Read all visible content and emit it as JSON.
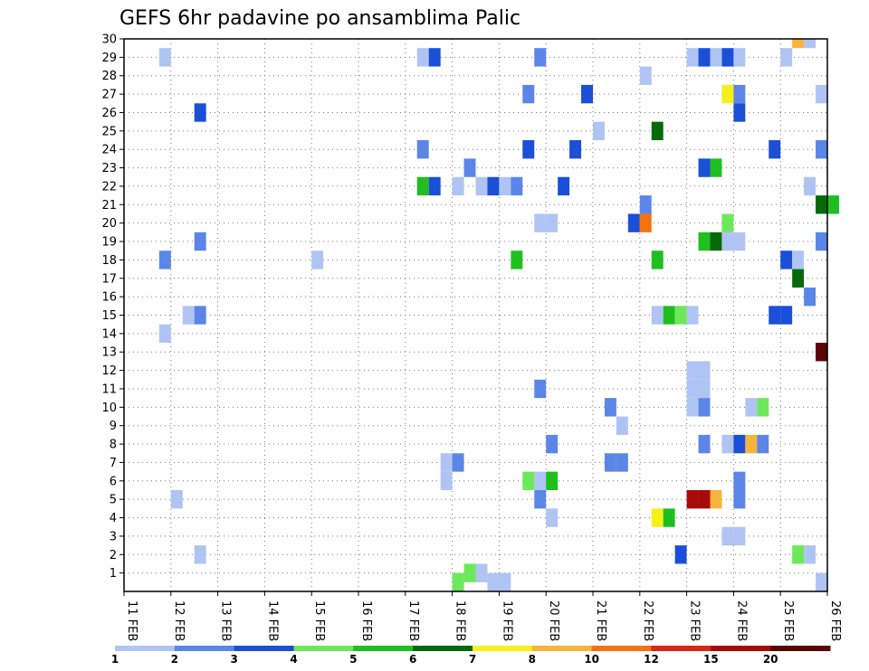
{
  "chart_data": {
    "type": "heatmap",
    "title": "GEFS 6hr padavine po ansamblima Palic",
    "x_tick_labels": [
      "11 FEB",
      "12 FEB",
      "13 FEB",
      "14 FEB",
      "15 FEB",
      "16 FEB",
      "17 FEB",
      "18 FEB",
      "19 FEB",
      "20 FEB",
      "21 FEB",
      "22 FEB",
      "23 FEB",
      "24 FEB",
      "25 FEB",
      "26 FEB"
    ],
    "y_tick_labels": [
      "1",
      "2",
      "3",
      "4",
      "5",
      "6",
      "7",
      "8",
      "9",
      "10",
      "11",
      "12",
      "13",
      "14",
      "15",
      "16",
      "17",
      "18",
      "19",
      "20",
      "21",
      "22",
      "23",
      "24",
      "25",
      "26",
      "27",
      "28",
      "29",
      "30"
    ],
    "x_range_days": [
      0,
      15
    ],
    "y_range": [
      0,
      30
    ],
    "step_hours": 6,
    "grid": true,
    "legend": {
      "position": "bottom",
      "labels": [
        "1",
        "2",
        "3",
        "4",
        "5",
        "6",
        "7",
        "8",
        "10",
        "12",
        "15",
        "20"
      ],
      "colors": [
        "#b0c4f4",
        "#5b86e8",
        "#1b4fd8",
        "#6de85a",
        "#1fbf1f",
        "#066a0d",
        "#f7f018",
        "#f8b43a",
        "#f47210",
        "#d92816",
        "#a80a0a",
        "#5a0606"
      ]
    },
    "cells": [
      {
        "x": 0.75,
        "y": 29,
        "c": 0
      },
      {
        "x": 1.5,
        "y": 26,
        "c": 2
      },
      {
        "x": 1.5,
        "y": 19,
        "c": 1
      },
      {
        "x": 0.75,
        "y": 18,
        "c": 1
      },
      {
        "x": 1.25,
        "y": 15,
        "c": 0
      },
      {
        "x": 1.5,
        "y": 15,
        "c": 1
      },
      {
        "x": 0.75,
        "y": 14,
        "c": 0
      },
      {
        "x": 1.0,
        "y": 5,
        "c": 0
      },
      {
        "x": 1.5,
        "y": 2,
        "c": 0
      },
      {
        "x": 4.0,
        "y": 18,
        "c": 0
      },
      {
        "x": 6.25,
        "y": 29,
        "c": 0
      },
      {
        "x": 6.5,
        "y": 29,
        "c": 2
      },
      {
        "x": 6.25,
        "y": 24,
        "c": 1
      },
      {
        "x": 6.25,
        "y": 22,
        "c": 4
      },
      {
        "x": 6.5,
        "y": 22,
        "c": 2
      },
      {
        "x": 6.75,
        "y": 7,
        "c": 0
      },
      {
        "x": 6.75,
        "y": 6,
        "c": 0
      },
      {
        "x": 7.0,
        "y": 7,
        "c": 1
      },
      {
        "x": 7.0,
        "y": 22,
        "c": 0
      },
      {
        "x": 7.25,
        "y": 23,
        "c": 1
      },
      {
        "x": 7.5,
        "y": 22,
        "c": 0
      },
      {
        "x": 7.75,
        "y": 22,
        "c": 2
      },
      {
        "x": 8.0,
        "y": 22,
        "c": 0
      },
      {
        "x": 8.25,
        "y": 22,
        "c": 1
      },
      {
        "x": 7.25,
        "y": 1,
        "c": 3
      },
      {
        "x": 7.5,
        "y": 1,
        "c": 0
      },
      {
        "x": 7.0,
        "y": 0.5,
        "c": 3
      },
      {
        "x": 7.75,
        "y": 0.5,
        "c": 0
      },
      {
        "x": 8.0,
        "y": 0.5,
        "c": 0
      },
      {
        "x": 8.25,
        "y": 18,
        "c": 4
      },
      {
        "x": 8.5,
        "y": 27,
        "c": 1
      },
      {
        "x": 8.5,
        "y": 24,
        "c": 2
      },
      {
        "x": 8.5,
        "y": 6,
        "c": 3
      },
      {
        "x": 8.75,
        "y": 6,
        "c": 0
      },
      {
        "x": 9.0,
        "y": 6,
        "c": 4
      },
      {
        "x": 8.75,
        "y": 29,
        "c": 1
      },
      {
        "x": 8.75,
        "y": 20,
        "c": 0
      },
      {
        "x": 9.0,
        "y": 20,
        "c": 0
      },
      {
        "x": 8.75,
        "y": 11,
        "c": 1
      },
      {
        "x": 9.0,
        "y": 8,
        "c": 1
      },
      {
        "x": 8.75,
        "y": 5,
        "c": 1
      },
      {
        "x": 9.0,
        "y": 4,
        "c": 0
      },
      {
        "x": 9.25,
        "y": 22,
        "c": 2
      },
      {
        "x": 9.5,
        "y": 24,
        "c": 2
      },
      {
        "x": 9.75,
        "y": 27,
        "c": 2
      },
      {
        "x": 10.0,
        "y": 25,
        "c": 0
      },
      {
        "x": 10.25,
        "y": 10,
        "c": 1
      },
      {
        "x": 10.25,
        "y": 7,
        "c": 1
      },
      {
        "x": 10.5,
        "y": 7,
        "c": 1
      },
      {
        "x": 10.5,
        "y": 9,
        "c": 0
      },
      {
        "x": 10.75,
        "y": 20,
        "c": 2
      },
      {
        "x": 11.0,
        "y": 20,
        "c": 8
      },
      {
        "x": 11.0,
        "y": 21,
        "c": 1
      },
      {
        "x": 11.0,
        "y": 28,
        "c": 0
      },
      {
        "x": 11.25,
        "y": 25,
        "c": 5
      },
      {
        "x": 11.25,
        "y": 18,
        "c": 4
      },
      {
        "x": 11.25,
        "y": 15,
        "c": 0
      },
      {
        "x": 11.5,
        "y": 15,
        "c": 4
      },
      {
        "x": 11.75,
        "y": 15,
        "c": 3
      },
      {
        "x": 12.0,
        "y": 15,
        "c": 0
      },
      {
        "x": 11.25,
        "y": 4,
        "c": 6
      },
      {
        "x": 11.5,
        "y": 4,
        "c": 4
      },
      {
        "x": 11.75,
        "y": 2,
        "c": 2
      },
      {
        "x": 12.0,
        "y": 29,
        "c": 0
      },
      {
        "x": 12.25,
        "y": 29,
        "c": 2
      },
      {
        "x": 12.5,
        "y": 29,
        "c": 0
      },
      {
        "x": 12.75,
        "y": 29,
        "c": 2
      },
      {
        "x": 13.0,
        "y": 29,
        "c": 0
      },
      {
        "x": 12.75,
        "y": 27,
        "c": 6
      },
      {
        "x": 13.0,
        "y": 27,
        "c": 1
      },
      {
        "x": 13.0,
        "y": 26,
        "c": 2
      },
      {
        "x": 12.25,
        "y": 23,
        "c": 2
      },
      {
        "x": 12.5,
        "y": 23,
        "c": 4
      },
      {
        "x": 12.25,
        "y": 19,
        "c": 4
      },
      {
        "x": 12.5,
        "y": 19,
        "c": 5
      },
      {
        "x": 12.75,
        "y": 19,
        "c": 0
      },
      {
        "x": 13.0,
        "y": 19,
        "c": 0
      },
      {
        "x": 12.75,
        "y": 20,
        "c": 3
      },
      {
        "x": 12.0,
        "y": 12,
        "c": 0
      },
      {
        "x": 12.25,
        "y": 12,
        "c": 0
      },
      {
        "x": 12.0,
        "y": 11,
        "c": 0
      },
      {
        "x": 12.25,
        "y": 11,
        "c": 0
      },
      {
        "x": 12.0,
        "y": 10,
        "c": 0
      },
      {
        "x": 12.25,
        "y": 10,
        "c": 1
      },
      {
        "x": 12.25,
        "y": 8,
        "c": 1
      },
      {
        "x": 12.0,
        "y": 5,
        "c": 10
      },
      {
        "x": 12.25,
        "y": 5,
        "c": 10
      },
      {
        "x": 12.5,
        "y": 5,
        "c": 7
      },
      {
        "x": 12.75,
        "y": 8,
        "c": 0
      },
      {
        "x": 13.0,
        "y": 8,
        "c": 2
      },
      {
        "x": 13.25,
        "y": 8,
        "c": 7
      },
      {
        "x": 13.5,
        "y": 8,
        "c": 1
      },
      {
        "x": 13.25,
        "y": 10,
        "c": 0
      },
      {
        "x": 13.5,
        "y": 10,
        "c": 3
      },
      {
        "x": 13.0,
        "y": 6,
        "c": 1
      },
      {
        "x": 13.0,
        "y": 5,
        "c": 1
      },
      {
        "x": 12.75,
        "y": 3,
        "c": 0
      },
      {
        "x": 13.0,
        "y": 3,
        "c": 0
      },
      {
        "x": 13.75,
        "y": 24,
        "c": 2
      },
      {
        "x": 13.75,
        "y": 15,
        "c": 2
      },
      {
        "x": 14.0,
        "y": 15,
        "c": 2
      },
      {
        "x": 14.0,
        "y": 18,
        "c": 2
      },
      {
        "x": 14.25,
        "y": 18,
        "c": 0
      },
      {
        "x": 14.25,
        "y": 17,
        "c": 5
      },
      {
        "x": 14.5,
        "y": 16,
        "c": 1
      },
      {
        "x": 14.0,
        "y": 29,
        "c": 0
      },
      {
        "x": 14.25,
        "y": 30,
        "c": 7
      },
      {
        "x": 14.5,
        "y": 30,
        "c": 0
      },
      {
        "x": 14.25,
        "y": 2,
        "c": 3
      },
      {
        "x": 14.5,
        "y": 2,
        "c": 0
      },
      {
        "x": 14.5,
        "y": 22,
        "c": 0
      },
      {
        "x": 14.75,
        "y": 27,
        "c": 0
      },
      {
        "x": 14.75,
        "y": 24,
        "c": 1
      },
      {
        "x": 14.75,
        "y": 21,
        "c": 5
      },
      {
        "x": 15.0,
        "y": 21,
        "c": 4
      },
      {
        "x": 14.75,
        "y": 19,
        "c": 1
      },
      {
        "x": 14.75,
        "y": 13,
        "c": 11
      },
      {
        "x": 14.75,
        "y": 0.5,
        "c": 0
      }
    ]
  }
}
